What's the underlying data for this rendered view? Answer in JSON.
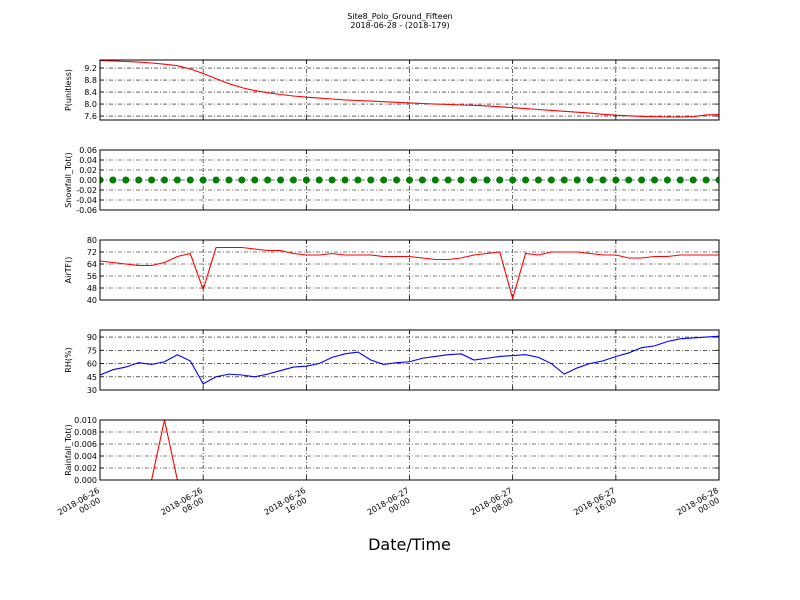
{
  "chart_data": [
    {
      "type": "line",
      "title": "Site8_Polo_Ground_Fifteen",
      "subtitle": "2018-06-28 - (2018-179)",
      "ylabel": "P(unitless)",
      "color": "#ff0000",
      "x": [
        "2018-06-26 00:00",
        "2018-06-26 01:00",
        "2018-06-26 02:00",
        "2018-06-26 03:00",
        "2018-06-26 04:00",
        "2018-06-26 05:00",
        "2018-06-26 06:00",
        "2018-06-26 07:00",
        "2018-06-26 08:00",
        "2018-06-26 09:00",
        "2018-06-26 10:00",
        "2018-06-26 11:00",
        "2018-06-26 12:00",
        "2018-06-26 13:00",
        "2018-06-26 14:00",
        "2018-06-26 15:00",
        "2018-06-26 16:00",
        "2018-06-26 17:00",
        "2018-06-26 18:00",
        "2018-06-26 19:00",
        "2018-06-26 20:00",
        "2018-06-26 21:00",
        "2018-06-26 22:00",
        "2018-06-26 23:00",
        "2018-06-27 00:00",
        "2018-06-27 01:00",
        "2018-06-27 02:00",
        "2018-06-27 03:00",
        "2018-06-27 04:00",
        "2018-06-27 05:00",
        "2018-06-27 06:00",
        "2018-06-27 07:00",
        "2018-06-27 08:00",
        "2018-06-27 09:00",
        "2018-06-27 10:00",
        "2018-06-27 11:00",
        "2018-06-27 12:00",
        "2018-06-27 13:00",
        "2018-06-27 14:00",
        "2018-06-27 15:00",
        "2018-06-27 16:00",
        "2018-06-27 17:00",
        "2018-06-27 18:00",
        "2018-06-27 19:00",
        "2018-06-27 20:00",
        "2018-06-27 21:00",
        "2018-06-27 22:00",
        "2018-06-27 23:00",
        "2018-06-28 00:00"
      ],
      "values": [
        9.45,
        9.44,
        9.42,
        9.4,
        9.37,
        9.33,
        9.28,
        9.17,
        9.02,
        8.85,
        8.68,
        8.55,
        8.45,
        8.38,
        8.32,
        8.27,
        8.23,
        8.2,
        8.17,
        8.14,
        8.12,
        8.1,
        8.08,
        8.06,
        8.04,
        8.02,
        8.0,
        7.99,
        7.97,
        7.96,
        7.94,
        7.91,
        7.88,
        7.85,
        7.82,
        7.79,
        7.76,
        7.73,
        7.7,
        7.66,
        7.63,
        7.61,
        7.59,
        7.58,
        7.57,
        7.57,
        7.58,
        7.64,
        7.65
      ],
      "xlim": [
        "2018-06-26 00:00",
        "2018-06-28 00:00"
      ],
      "xticks": [
        "2018-06-26 00:00",
        "2018-06-26 08:00",
        "2018-06-26 16:00",
        "2018-06-27 00:00",
        "2018-06-27 08:00",
        "2018-06-27 16:00",
        "2018-06-28 00:00"
      ],
      "ylim": [
        7.47,
        9.47
      ],
      "yticks": [
        7.6,
        {
          "value": 8.0,
          "label": "8.0"
        },
        8.4,
        8.8,
        9.2
      ],
      "grid": true
    },
    {
      "type": "scatter",
      "ylabel": "Snowfall_Tot()",
      "color": "#008000",
      "x": [
        "2018-06-26 00:00",
        "2018-06-26 01:00",
        "2018-06-26 02:00",
        "2018-06-26 03:00",
        "2018-06-26 04:00",
        "2018-06-26 05:00",
        "2018-06-26 06:00",
        "2018-06-26 07:00",
        "2018-06-26 08:00",
        "2018-06-26 09:00",
        "2018-06-26 10:00",
        "2018-06-26 11:00",
        "2018-06-26 12:00",
        "2018-06-26 13:00",
        "2018-06-26 14:00",
        "2018-06-26 15:00",
        "2018-06-26 16:00",
        "2018-06-26 17:00",
        "2018-06-26 18:00",
        "2018-06-26 19:00",
        "2018-06-26 20:00",
        "2018-06-26 21:00",
        "2018-06-26 22:00",
        "2018-06-26 23:00",
        "2018-06-27 00:00",
        "2018-06-27 01:00",
        "2018-06-27 02:00",
        "2018-06-27 03:00",
        "2018-06-27 04:00",
        "2018-06-27 05:00",
        "2018-06-27 06:00",
        "2018-06-27 07:00",
        "2018-06-27 08:00",
        "2018-06-27 09:00",
        "2018-06-27 10:00",
        "2018-06-27 11:00",
        "2018-06-27 12:00",
        "2018-06-27 13:00",
        "2018-06-27 14:00",
        "2018-06-27 15:00",
        "2018-06-27 16:00",
        "2018-06-27 17:00",
        "2018-06-27 18:00",
        "2018-06-27 19:00",
        "2018-06-27 20:00",
        "2018-06-27 21:00",
        "2018-06-27 22:00",
        "2018-06-27 23:00",
        "2018-06-28 00:00"
      ],
      "values": [
        0,
        0,
        0,
        0,
        0,
        0,
        0,
        0,
        0,
        0,
        0,
        0,
        0,
        0,
        0,
        0,
        0,
        0,
        0,
        0,
        0,
        0,
        0,
        0,
        0,
        0,
        0,
        0,
        0,
        0,
        0,
        0,
        0,
        0,
        0,
        0,
        0,
        0,
        0,
        0,
        0,
        0,
        0,
        0,
        0,
        0,
        0,
        0,
        0
      ],
      "xlim": [
        "2018-06-26 00:00",
        "2018-06-28 00:00"
      ],
      "xticks": [
        "2018-06-26 00:00",
        "2018-06-26 08:00",
        "2018-06-26 16:00",
        "2018-06-27 00:00",
        "2018-06-27 08:00",
        "2018-06-27 16:00",
        "2018-06-28 00:00"
      ],
      "ylim": [
        -0.06,
        0.06
      ],
      "yticks": [
        -0.06,
        -0.04,
        -0.02,
        {
          "value": 0,
          "label": "0.00"
        },
        0.02,
        0.04,
        0.06
      ],
      "grid": true
    },
    {
      "type": "line",
      "ylabel": "AirTF()",
      "color": "#ff0000",
      "x": [
        "2018-06-26 00:00",
        "2018-06-26 01:00",
        "2018-06-26 02:00",
        "2018-06-26 03:00",
        "2018-06-26 04:00",
        "2018-06-26 05:00",
        "2018-06-26 06:00",
        "2018-06-26 07:00",
        "2018-06-26 08:00",
        "2018-06-26 09:00",
        "2018-06-26 10:00",
        "2018-06-26 11:00",
        "2018-06-26 12:00",
        "2018-06-26 13:00",
        "2018-06-26 14:00",
        "2018-06-26 15:00",
        "2018-06-26 16:00",
        "2018-06-26 17:00",
        "2018-06-26 18:00",
        "2018-06-26 19:00",
        "2018-06-26 20:00",
        "2018-06-26 21:00",
        "2018-06-26 22:00",
        "2018-06-26 23:00",
        "2018-06-27 00:00",
        "2018-06-27 01:00",
        "2018-06-27 02:00",
        "2018-06-27 03:00",
        "2018-06-27 04:00",
        "2018-06-27 05:00",
        "2018-06-27 06:00",
        "2018-06-27 07:00",
        "2018-06-27 08:00",
        "2018-06-27 09:00",
        "2018-06-27 10:00",
        "2018-06-27 11:00",
        "2018-06-27 12:00",
        "2018-06-27 13:00",
        "2018-06-27 14:00",
        "2018-06-27 15:00",
        "2018-06-27 16:00",
        "2018-06-27 17:00",
        "2018-06-27 18:00",
        "2018-06-27 19:00",
        "2018-06-27 20:00",
        "2018-06-27 21:00",
        "2018-06-27 22:00",
        "2018-06-27 23:00",
        "2018-06-28 00:00"
      ],
      "values": [
        66,
        65,
        64,
        63,
        63,
        65,
        69,
        71,
        47,
        75,
        75,
        75,
        74,
        73,
        73,
        71,
        70,
        70,
        71,
        70,
        70,
        70,
        69,
        69,
        69,
        68,
        67,
        67,
        68,
        70,
        71,
        72,
        41,
        71,
        70,
        72,
        72,
        72,
        71,
        70,
        70,
        68,
        68,
        69,
        69,
        70,
        70,
        70,
        70
      ],
      "xlim": [
        "2018-06-26 00:00",
        "2018-06-28 00:00"
      ],
      "xticks": [
        "2018-06-26 00:00",
        "2018-06-26 08:00",
        "2018-06-26 16:00",
        "2018-06-27 00:00",
        "2018-06-27 08:00",
        "2018-06-27 16:00",
        "2018-06-28 00:00"
      ],
      "ylim": [
        40,
        80
      ],
      "yticks": [
        40,
        48,
        56,
        64,
        72,
        80
      ],
      "grid": true
    },
    {
      "type": "line",
      "ylabel": "RH(%)",
      "color": "#0000ff",
      "x": [
        "2018-06-26 00:00",
        "2018-06-26 01:00",
        "2018-06-26 02:00",
        "2018-06-26 03:00",
        "2018-06-26 04:00",
        "2018-06-26 05:00",
        "2018-06-26 06:00",
        "2018-06-26 07:00",
        "2018-06-26 08:00",
        "2018-06-26 09:00",
        "2018-06-26 10:00",
        "2018-06-26 11:00",
        "2018-06-26 12:00",
        "2018-06-26 13:00",
        "2018-06-26 14:00",
        "2018-06-26 15:00",
        "2018-06-26 16:00",
        "2018-06-26 17:00",
        "2018-06-26 18:00",
        "2018-06-26 19:00",
        "2018-06-26 20:00",
        "2018-06-26 21:00",
        "2018-06-26 22:00",
        "2018-06-26 23:00",
        "2018-06-27 00:00",
        "2018-06-27 01:00",
        "2018-06-27 02:00",
        "2018-06-27 03:00",
        "2018-06-27 04:00",
        "2018-06-27 05:00",
        "2018-06-27 06:00",
        "2018-06-27 07:00",
        "2018-06-27 08:00",
        "2018-06-27 09:00",
        "2018-06-27 10:00",
        "2018-06-27 11:00",
        "2018-06-27 12:00",
        "2018-06-27 13:00",
        "2018-06-27 14:00",
        "2018-06-27 15:00",
        "2018-06-27 16:00",
        "2018-06-27 17:00",
        "2018-06-27 18:00",
        "2018-06-27 19:00",
        "2018-06-27 20:00",
        "2018-06-27 21:00",
        "2018-06-27 22:00",
        "2018-06-27 23:00",
        "2018-06-28 00:00"
      ],
      "values": [
        47,
        53,
        56,
        61,
        59,
        62,
        70,
        63,
        37,
        45,
        48,
        47,
        45,
        48,
        52,
        56,
        57,
        60,
        67,
        71,
        73,
        64,
        59,
        61,
        62,
        66,
        68,
        70,
        71,
        64,
        66,
        68,
        69,
        70,
        67,
        60,
        48,
        55,
        60,
        63,
        68,
        72,
        78,
        80,
        85,
        88,
        89,
        90,
        91
      ],
      "xlim": [
        "2018-06-26 00:00",
        "2018-06-28 00:00"
      ],
      "xticks": [
        "2018-06-26 00:00",
        "2018-06-26 08:00",
        "2018-06-26 16:00",
        "2018-06-27 00:00",
        "2018-06-27 08:00",
        "2018-06-27 16:00",
        "2018-06-28 00:00"
      ],
      "ylim": [
        30,
        98
      ],
      "yticks": [
        30,
        45,
        60,
        75,
        90
      ],
      "grid": true
    },
    {
      "type": "line",
      "ylabel": "Rainfall_Tot()",
      "xlabel": "Date/Time",
      "color": "#ff0000",
      "x": [
        "2018-06-26 00:00",
        "2018-06-26 01:00",
        "2018-06-26 02:00",
        "2018-06-26 03:00",
        "2018-06-26 04:00",
        "2018-06-26 05:00",
        "2018-06-26 06:00",
        "2018-06-26 07:00",
        "2018-06-26 08:00",
        "2018-06-26 09:00",
        "2018-06-26 10:00",
        "2018-06-26 11:00",
        "2018-06-26 12:00",
        "2018-06-26 13:00",
        "2018-06-26 14:00",
        "2018-06-26 15:00",
        "2018-06-26 16:00",
        "2018-06-26 17:00",
        "2018-06-26 18:00",
        "2018-06-26 19:00",
        "2018-06-26 20:00",
        "2018-06-26 21:00",
        "2018-06-26 22:00",
        "2018-06-26 23:00",
        "2018-06-27 00:00",
        "2018-06-27 01:00",
        "2018-06-27 02:00",
        "2018-06-27 03:00",
        "2018-06-27 04:00",
        "2018-06-27 05:00",
        "2018-06-27 06:00",
        "2018-06-27 07:00",
        "2018-06-27 08:00",
        "2018-06-27 09:00",
        "2018-06-27 10:00",
        "2018-06-27 11:00",
        "2018-06-27 12:00",
        "2018-06-27 13:00",
        "2018-06-27 14:00",
        "2018-06-27 15:00",
        "2018-06-27 16:00",
        "2018-06-27 17:00",
        "2018-06-27 18:00",
        "2018-06-27 19:00",
        "2018-06-27 20:00",
        "2018-06-27 21:00",
        "2018-06-27 22:00",
        "2018-06-27 23:00",
        "2018-06-28 00:00"
      ],
      "values": [
        0,
        0,
        0,
        0,
        0,
        0.01,
        0,
        0,
        0,
        0,
        0,
        0,
        0,
        0,
        0,
        0,
        0,
        0,
        0,
        0,
        0,
        0,
        0,
        0,
        0,
        0,
        0,
        0,
        0,
        0,
        0,
        0,
        0,
        0,
        0,
        0,
        0,
        0,
        0,
        0,
        0,
        0,
        0,
        0,
        0,
        0,
        0,
        0,
        0
      ],
      "xlim": [
        "2018-06-26 00:00",
        "2018-06-28 00:00"
      ],
      "xticks": [
        "2018-06-26 00:00",
        "2018-06-26 08:00",
        "2018-06-26 16:00",
        "2018-06-27 00:00",
        "2018-06-27 08:00",
        "2018-06-27 16:00",
        "2018-06-28 00:00"
      ],
      "ylim": [
        0,
        0.01
      ],
      "yticks": [
        {
          "value": 0,
          "label": "0.000"
        },
        {
          "value": 0.002,
          "label": "0.002"
        },
        {
          "value": 0.004,
          "label": "0.004"
        },
        {
          "value": 0.006,
          "label": "0.006"
        },
        {
          "value": 0.008,
          "label": "0.008"
        },
        {
          "value": 0.01,
          "label": "0.010"
        }
      ],
      "grid": true
    }
  ]
}
